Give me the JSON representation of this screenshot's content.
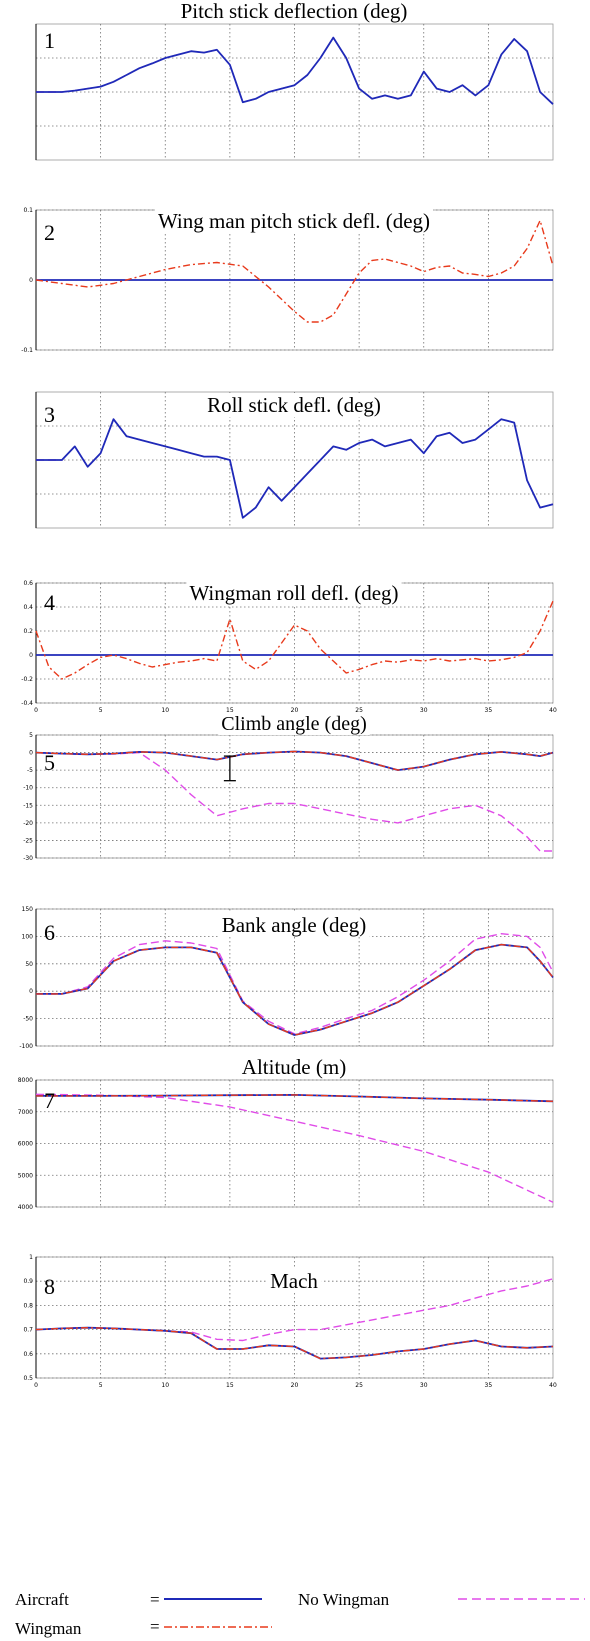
{
  "chart_data": [
    {
      "type": "line",
      "number": "1",
      "title": "Pitch stick deflection (deg)",
      "x": [
        0,
        1,
        2,
        3,
        4,
        5,
        6,
        7,
        8,
        9,
        10,
        11,
        12,
        13,
        14,
        15,
        16,
        17,
        18,
        19,
        20,
        21,
        22,
        23,
        24,
        25,
        26,
        27,
        28,
        29,
        30,
        31,
        32,
        33,
        34,
        35,
        36,
        37,
        38,
        39,
        40
      ],
      "yticks": [],
      "xticks": [],
      "ylim": [
        -1,
        1
      ],
      "series": [
        {
          "style": "aircraft",
          "values": [
            0,
            0,
            0,
            0.02,
            0.05,
            0.08,
            0.15,
            0.25,
            0.35,
            0.42,
            0.5,
            0.55,
            0.6,
            0.58,
            0.62,
            0.4,
            -0.15,
            -0.1,
            0.0,
            0.05,
            0.1,
            0.25,
            0.5,
            0.8,
            0.5,
            0.05,
            -0.1,
            -0.05,
            -0.1,
            -0.05,
            0.3,
            0.05,
            0.0,
            0.1,
            -0.05,
            0.1,
            0.55,
            0.78,
            0.6,
            0.0,
            -0.18
          ]
        },
        {
          "style": "no_wingman",
          "values": [
            0,
            0,
            0,
            0.02,
            0.05,
            0.08,
            0.15,
            0.25,
            0.35,
            0.42,
            0.5,
            0.55,
            0.6,
            0.58,
            0.62,
            0.4,
            -0.15,
            -0.1,
            0.0,
            0.05,
            0.1,
            0.25,
            0.5,
            0.8,
            0.5,
            0.05,
            -0.1,
            -0.05,
            -0.1,
            -0.05,
            0.3,
            0.05,
            0.0,
            0.1,
            -0.05,
            0.1,
            0.55,
            0.78,
            0.6,
            0.0,
            -0.18
          ]
        }
      ]
    },
    {
      "type": "line",
      "number": "2",
      "title": "Wing man pitch stick defl. (deg)",
      "x": [
        0,
        2,
        4,
        6,
        8,
        10,
        12,
        14,
        16,
        18,
        20,
        21,
        22,
        23,
        24,
        25,
        26,
        27,
        28,
        29,
        30,
        31,
        32,
        33,
        34,
        35,
        36,
        37,
        38,
        39,
        40
      ],
      "yticks": [
        "0.1",
        "0",
        "-0.1"
      ],
      "xticks": [],
      "ylim": [
        -0.1,
        0.1
      ],
      "series": [
        {
          "style": "wingman",
          "values": [
            0,
            -0.005,
            -0.01,
            -0.005,
            0.005,
            0.015,
            0.022,
            0.025,
            0.02,
            -0.01,
            -0.045,
            -0.06,
            -0.06,
            -0.05,
            -0.02,
            0.01,
            0.028,
            0.03,
            0.025,
            0.02,
            0.012,
            0.018,
            0.02,
            0.01,
            0.008,
            0.005,
            0.01,
            0.02,
            0.045,
            0.085,
            0.02
          ]
        },
        {
          "style": "aircraft",
          "values": [
            0,
            0,
            0,
            0,
            0,
            0,
            0,
            0,
            0,
            0,
            0,
            0,
            0,
            0,
            0,
            0,
            0,
            0,
            0,
            0,
            0,
            0,
            0,
            0,
            0,
            0,
            0,
            0,
            0,
            0,
            0
          ]
        }
      ]
    },
    {
      "type": "line",
      "number": "3",
      "title": "Roll stick defl. (deg)",
      "x": [
        0,
        1,
        2,
        3,
        4,
        5,
        6,
        7,
        8,
        9,
        10,
        11,
        12,
        13,
        14,
        15,
        16,
        17,
        18,
        19,
        20,
        21,
        22,
        23,
        24,
        25,
        26,
        27,
        28,
        29,
        30,
        31,
        32,
        33,
        34,
        35,
        36,
        37,
        38,
        39,
        40
      ],
      "yticks": [],
      "xticks": [],
      "ylim": [
        -1,
        1
      ],
      "series": [
        {
          "style": "aircraft",
          "values": [
            0,
            0,
            0,
            0.2,
            -0.1,
            0.1,
            0.6,
            0.35,
            0.3,
            0.25,
            0.2,
            0.15,
            0.1,
            0.05,
            0.05,
            0,
            -0.85,
            -0.7,
            -0.4,
            -0.6,
            -0.4,
            -0.2,
            0.0,
            0.2,
            0.15,
            0.25,
            0.3,
            0.2,
            0.25,
            0.3,
            0.1,
            0.35,
            0.4,
            0.25,
            0.3,
            0.45,
            0.6,
            0.55,
            -0.3,
            -0.7,
            -0.65
          ]
        },
        {
          "style": "no_wingman",
          "values": [
            0,
            0,
            0,
            0.2,
            -0.1,
            0.1,
            0.6,
            0.35,
            0.3,
            0.25,
            0.2,
            0.15,
            0.1,
            0.05,
            0.05,
            0,
            -0.85,
            -0.7,
            -0.4,
            -0.6,
            -0.4,
            -0.2,
            0.0,
            0.2,
            0.15,
            0.25,
            0.3,
            0.2,
            0.25,
            0.3,
            0.1,
            0.35,
            0.4,
            0.25,
            0.3,
            0.45,
            0.6,
            0.55,
            -0.3,
            -0.7,
            -0.65
          ]
        }
      ]
    },
    {
      "type": "line",
      "number": "4",
      "title": "Wingman roll defl. (deg)",
      "x": [
        0,
        1,
        2,
        3,
        4,
        5,
        6,
        7,
        8,
        9,
        10,
        11,
        12,
        13,
        14,
        15,
        16,
        17,
        18,
        19,
        20,
        21,
        22,
        23,
        24,
        25,
        26,
        27,
        28,
        29,
        30,
        31,
        32,
        33,
        34,
        35,
        36,
        37,
        38,
        39,
        40
      ],
      "yticks": [
        "0.6",
        "0.4",
        "0.2",
        "0",
        "-0.2",
        "-0.4"
      ],
      "xticks": [
        "0",
        "5",
        "10",
        "15",
        "20",
        "25",
        "30",
        "35",
        "40"
      ],
      "ylim": [
        -0.4,
        0.6
      ],
      "series": [
        {
          "style": "wingman",
          "values": [
            0.2,
            -0.1,
            -0.2,
            -0.15,
            -0.08,
            -0.02,
            0.0,
            -0.03,
            -0.07,
            -0.1,
            -0.08,
            -0.06,
            -0.05,
            -0.03,
            -0.05,
            0.3,
            -0.05,
            -0.12,
            -0.05,
            0.1,
            0.25,
            0.2,
            0.05,
            -0.05,
            -0.15,
            -0.12,
            -0.08,
            -0.05,
            -0.06,
            -0.04,
            -0.05,
            -0.03,
            -0.05,
            -0.04,
            -0.03,
            -0.05,
            -0.04,
            -0.02,
            0.02,
            0.2,
            0.45
          ]
        },
        {
          "style": "aircraft",
          "values": [
            0,
            0,
            0,
            0,
            0,
            0,
            0,
            0,
            0,
            0,
            0,
            0,
            0,
            0,
            0,
            0,
            0,
            0,
            0,
            0,
            0,
            0,
            0,
            0,
            0,
            0,
            0,
            0,
            0,
            0,
            0,
            0,
            0,
            0,
            0,
            0,
            0,
            0,
            0,
            0,
            0
          ]
        }
      ]
    },
    {
      "type": "line",
      "number": "5",
      "title": "Climb angle (deg)",
      "x": [
        0,
        2,
        4,
        6,
        8,
        10,
        12,
        14,
        16,
        18,
        20,
        22,
        24,
        26,
        28,
        30,
        32,
        34,
        36,
        38,
        39,
        40
      ],
      "yticks": [
        "5",
        "0",
        "-5",
        "-10",
        "-15",
        "-20",
        "-25",
        "-30"
      ],
      "xticks": [],
      "ylim": [
        -30,
        5
      ],
      "annotations": [
        "error-bar marker"
      ],
      "series": [
        {
          "style": "aircraft",
          "values": [
            0,
            -0.3,
            -0.5,
            -0.3,
            0.2,
            0,
            -1,
            -2,
            -0.5,
            0,
            0.3,
            0,
            -1,
            -3,
            -5,
            -4,
            -2,
            -0.5,
            0.2,
            -0.5,
            -1,
            0
          ]
        },
        {
          "style": "wingman",
          "values": [
            0,
            -0.3,
            -0.5,
            -0.3,
            0.2,
            0,
            -1,
            -2,
            -0.5,
            0,
            0.3,
            0,
            -1,
            -3,
            -5,
            -4,
            -2,
            -0.5,
            0.2,
            -0.5,
            -1,
            0
          ]
        },
        {
          "style": "no_wingman",
          "values": [
            0,
            -0.3,
            -0.5,
            -0.4,
            0,
            -5,
            -12,
            -18,
            -16,
            -14.5,
            -14.5,
            -16,
            -17.5,
            -19,
            -20,
            -18,
            -16,
            -15,
            -18,
            -24,
            -28,
            -28
          ]
        }
      ]
    },
    {
      "type": "line",
      "number": "6",
      "title": "Bank angle (deg)",
      "x": [
        0,
        2,
        4,
        6,
        8,
        10,
        12,
        14,
        16,
        18,
        20,
        22,
        24,
        26,
        28,
        30,
        32,
        34,
        36,
        38,
        39,
        40
      ],
      "yticks": [
        "150",
        "100",
        "50",
        "0",
        "-50",
        "-100"
      ],
      "xticks": [],
      "ylim": [
        -100,
        150
      ],
      "series": [
        {
          "style": "aircraft",
          "values": [
            -5,
            -5,
            5,
            55,
            75,
            80,
            80,
            70,
            -20,
            -60,
            -80,
            -70,
            -55,
            -40,
            -20,
            10,
            40,
            75,
            85,
            80,
            55,
            25
          ]
        },
        {
          "style": "wingman",
          "values": [
            -5,
            -5,
            5,
            55,
            75,
            80,
            80,
            70,
            -20,
            -60,
            -80,
            -70,
            -55,
            -40,
            -20,
            10,
            40,
            75,
            85,
            80,
            55,
            25
          ]
        },
        {
          "style": "no_wingman",
          "values": [
            -5,
            -5,
            8,
            60,
            85,
            92,
            88,
            78,
            -18,
            -55,
            -78,
            -66,
            -50,
            -35,
            -10,
            20,
            55,
            95,
            105,
            100,
            80,
            35
          ]
        }
      ]
    },
    {
      "type": "line",
      "number": "7",
      "title": "Altitude (m)",
      "x": [
        0,
        5,
        10,
        15,
        20,
        25,
        30,
        35,
        40
      ],
      "yticks": [
        "8000",
        "7000",
        "6000",
        "5000",
        "4000"
      ],
      "xticks": [],
      "ylim": [
        4000,
        8000
      ],
      "series": [
        {
          "style": "aircraft",
          "values": [
            7500,
            7500,
            7510,
            7520,
            7530,
            7480,
            7420,
            7380,
            7330
          ]
        },
        {
          "style": "wingman",
          "values": [
            7500,
            7500,
            7510,
            7520,
            7530,
            7480,
            7420,
            7380,
            7330
          ]
        },
        {
          "style": "no_wingman",
          "values": [
            7550,
            7520,
            7450,
            7150,
            6700,
            6250,
            5750,
            5100,
            4150
          ]
        }
      ]
    },
    {
      "type": "line",
      "number": "8",
      "title": "Mach",
      "x": [
        0,
        2,
        4,
        6,
        8,
        10,
        12,
        14,
        16,
        18,
        20,
        22,
        24,
        26,
        28,
        30,
        32,
        34,
        36,
        38,
        40
      ],
      "yticks": [
        "1",
        "0.9",
        "0.8",
        "0.7",
        "0.6",
        "0.5"
      ],
      "xticks": [
        "0",
        "5",
        "10",
        "15",
        "20",
        "25",
        "30",
        "35",
        "40"
      ],
      "ylim": [
        0.5,
        1
      ],
      "series": [
        {
          "style": "aircraft",
          "values": [
            0.7,
            0.705,
            0.708,
            0.705,
            0.7,
            0.695,
            0.685,
            0.62,
            0.62,
            0.635,
            0.63,
            0.58,
            0.585,
            0.595,
            0.61,
            0.62,
            0.64,
            0.655,
            0.63,
            0.625,
            0.63
          ]
        },
        {
          "style": "wingman",
          "values": [
            0.7,
            0.705,
            0.708,
            0.705,
            0.7,
            0.695,
            0.685,
            0.62,
            0.62,
            0.635,
            0.63,
            0.58,
            0.585,
            0.595,
            0.61,
            0.62,
            0.64,
            0.655,
            0.63,
            0.625,
            0.63
          ]
        },
        {
          "style": "no_wingman",
          "values": [
            0.7,
            0.705,
            0.708,
            0.705,
            0.7,
            0.695,
            0.69,
            0.66,
            0.655,
            0.68,
            0.7,
            0.7,
            0.72,
            0.74,
            0.76,
            0.78,
            0.8,
            0.83,
            0.86,
            0.88,
            0.91
          ]
        }
      ]
    }
  ],
  "legend": {
    "aircraft_label": "Aircraft",
    "aircraft_eq": "=",
    "wingman_label": "Wingman",
    "wingman_eq": "=",
    "no_wingman_label": "No Wingman"
  },
  "colors": {
    "aircraft": "#1f2ab8",
    "wingman": "#e83a1c",
    "no_wingman": "#e04ce8",
    "grid": "#707070"
  }
}
